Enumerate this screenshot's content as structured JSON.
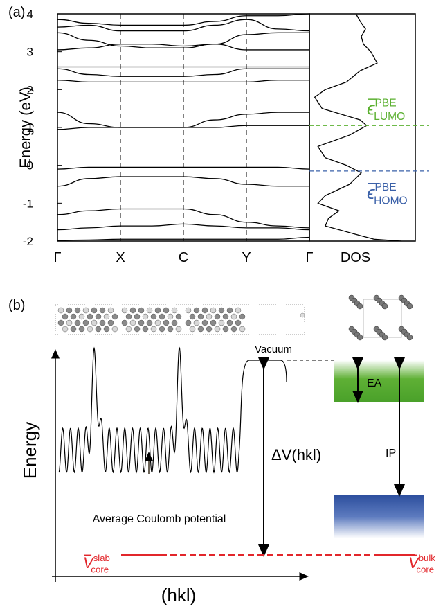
{
  "chart_data": [
    {
      "type": "bands",
      "panel_label": "(a)",
      "y_label": "Energy (eV)",
      "x": [
        0,
        0.5,
        1,
        1.5,
        2,
        2.5,
        3,
        3.5,
        4
      ],
      "xlim": [
        0,
        4
      ],
      "xticks": [
        {
          "value": 0,
          "label": "Γ"
        },
        {
          "value": 1,
          "label": "X"
        },
        {
          "value": 2,
          "label": "C"
        },
        {
          "value": 3,
          "label": "Y"
        },
        {
          "value": 4,
          "label": "Γ"
        }
      ],
      "ylim": [
        -2,
        4
      ],
      "yticks": [
        -2,
        -1,
        0,
        1,
        2,
        3,
        4
      ],
      "color": "#000000",
      "series": [
        {
          "values": [
            -1.98,
            -1.97,
            -1.95,
            -1.95,
            -1.95,
            -1.95,
            -1.95,
            -1.95,
            -1.9
          ]
        },
        {
          "values": [
            -1.7,
            -1.65,
            -1.6,
            -1.6,
            -1.55,
            -1.6,
            -1.65,
            -1.65,
            -1.7
          ]
        },
        {
          "values": [
            -1.3,
            -1.2,
            -1.15,
            -1.15,
            -1.15,
            -1.3,
            -1.5,
            -1.6,
            -1.65
          ]
        },
        {
          "values": [
            -0.55,
            -0.35,
            -0.3,
            -0.3,
            -0.3,
            -0.35,
            -0.5,
            -0.55,
            -0.55
          ]
        },
        {
          "values": [
            -0.1,
            -0.05,
            -0.05,
            -0.05,
            -0.05,
            -0.05,
            -0.05,
            -0.05,
            -0.1
          ]
        },
        {
          "values": [
            1.4,
            1.1,
            1.0,
            1.0,
            1.0,
            1.2,
            1.35,
            1.4,
            1.4
          ]
        },
        {
          "values": [
            0.95,
            1.0,
            1.0,
            1.0,
            1.0,
            1.0,
            1.05,
            1.05,
            1.05
          ]
        },
        {
          "values": [
            2.25,
            2.2,
            2.2,
            2.2,
            2.2,
            2.2,
            2.2,
            2.25,
            2.25
          ]
        },
        {
          "values": [
            2.55,
            2.4,
            2.35,
            2.35,
            2.35,
            2.4,
            2.55,
            2.55,
            2.55
          ]
        },
        {
          "values": [
            2.6,
            2.6,
            2.6,
            2.6,
            2.6,
            2.6,
            2.6,
            2.6,
            2.6
          ]
        },
        {
          "values": [
            3.05,
            3.1,
            3.2,
            3.2,
            3.15,
            3.2,
            3.05,
            3.05,
            3.05
          ]
        },
        {
          "values": [
            3.5,
            3.3,
            3.15,
            3.1,
            3.1,
            3.2,
            3.45,
            3.5,
            3.5
          ]
        },
        {
          "values": [
            3.65,
            3.7,
            3.55,
            3.55,
            3.55,
            3.7,
            3.85,
            3.6,
            3.55
          ]
        },
        {
          "values": [
            3.85,
            3.75,
            3.7,
            3.7,
            3.7,
            3.8,
            3.95,
            3.95,
            4.0
          ]
        }
      ]
    },
    {
      "type": "dos",
      "x_label": "DOS",
      "color": "#000000",
      "xlim": [
        0,
        1
      ],
      "ylim": [
        -2,
        4
      ],
      "y": [
        4,
        3.8,
        3.6,
        3.4,
        3.2,
        3.0,
        2.7,
        2.5,
        2.2,
        2.0,
        1.8,
        1.5,
        1.2,
        1.05,
        0.8,
        0.5,
        0.2,
        0,
        -0.2,
        -0.5,
        -0.8,
        -1.0,
        -1.2,
        -1.4,
        -1.6,
        -1.8,
        -1.95,
        -2
      ],
      "values": [
        0.44,
        0.48,
        0.53,
        0.49,
        0.51,
        0.58,
        0.64,
        0.48,
        0.35,
        0.15,
        0.05,
        0.12,
        0.48,
        0.54,
        0.38,
        0.08,
        0.15,
        0.35,
        0.49,
        0.38,
        0.15,
        0.08,
        0.28,
        0.18,
        0.15,
        0.41,
        0.61,
        0.87
      ],
      "levels": [
        {
          "value": 1.05,
          "color": "#5bb030",
          "symbol": "ϵ",
          "sup": "PBE",
          "sub": "LUMO"
        },
        {
          "value": -0.15,
          "color": "#3a60a8",
          "symbol": "ϵ",
          "sup": "PBE",
          "sub": "HOMO"
        }
      ]
    }
  ],
  "diagram": {
    "panel_label": "(b)",
    "y_label": "Energy",
    "x_label": "(hkl)",
    "vacuum": "Vacuum",
    "ea": "EA",
    "ip": "IP",
    "delta_v": "ΔV(hkl)",
    "coulomb": "Average Coulomb potential",
    "v_slab": {
      "symbol": "V",
      "sup": "slab",
      "sub": "core"
    },
    "v_bulk": {
      "symbol": "V",
      "sup": "bulk",
      "sub": "core"
    }
  }
}
